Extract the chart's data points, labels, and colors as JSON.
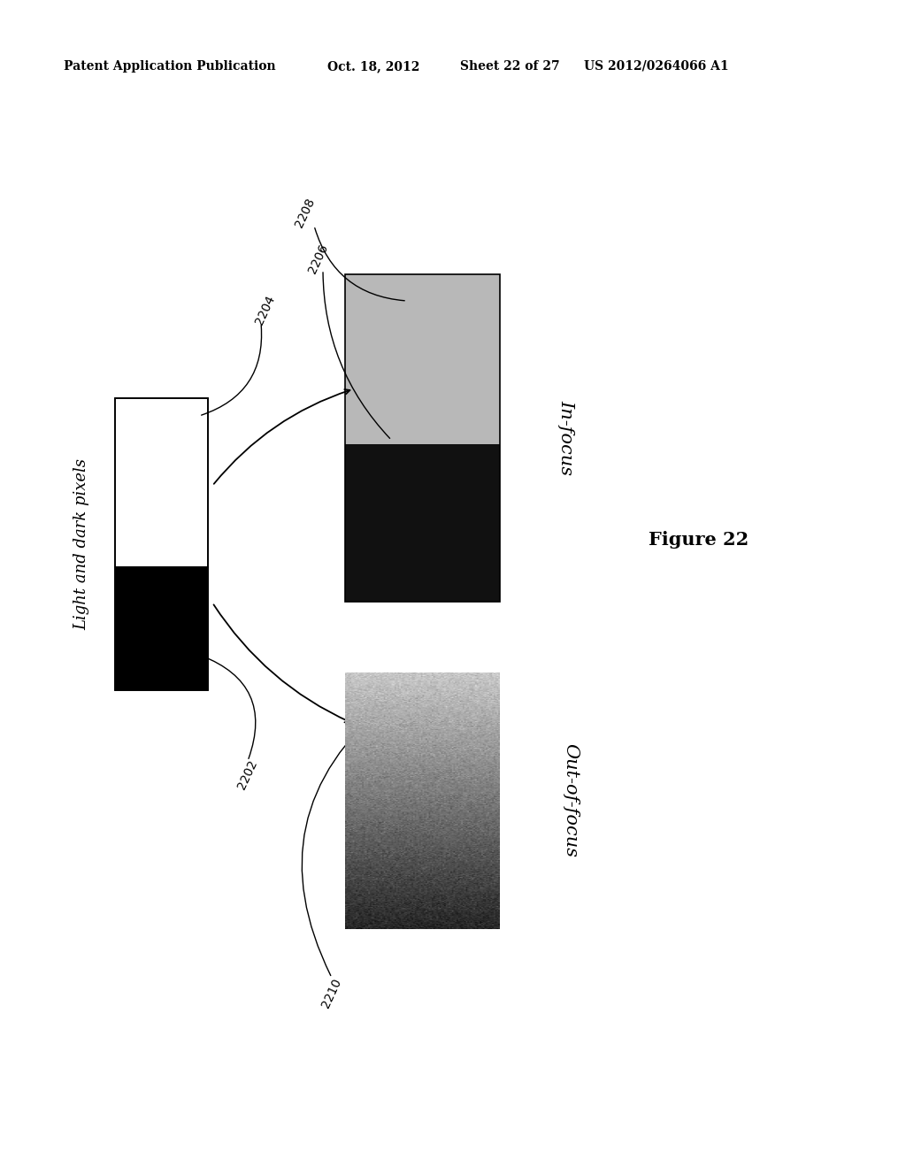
{
  "background_color": "#ffffff",
  "header_text": "Patent Application Publication",
  "header_date": "Oct. 18, 2012",
  "header_sheet": "Sheet 22 of 27",
  "header_patent": "US 2012/0264066 A1",
  "figure_label": "Figure 22",
  "title_rotated": "Light and dark pixels",
  "label_infocus": "In-focus",
  "label_outfocus": "Out-of-focus",
  "ref_2202": "2202",
  "ref_2204": "2204",
  "ref_2206": "2206",
  "ref_2208": "2208",
  "ref_2210": "2210"
}
